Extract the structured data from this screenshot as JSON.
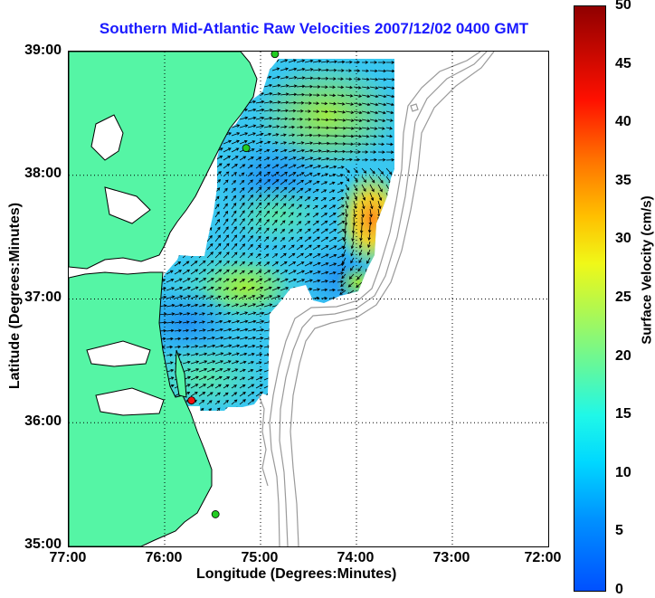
{
  "title": "Southern Mid-Atlantic Raw Velocities 2007/12/02 0400 GMT",
  "xlabel": "Longitude (Degrees:Minutes)",
  "ylabel": "Latitude (Degrees:Minutes)",
  "x_ticks": [
    "77:00",
    "76:00",
    "75:00",
    "74:00",
    "73:00",
    "72:00"
  ],
  "y_ticks": [
    "39:00",
    "38:00",
    "37:00",
    "36:00",
    "35:00"
  ],
  "colorbar": {
    "label": "Surface Velocity (cm/s)",
    "ticks": [
      "50",
      "45",
      "40",
      "35",
      "30",
      "25",
      "20",
      "15",
      "10",
      "5",
      "0"
    ],
    "min": 0,
    "max": 50
  },
  "colors": {
    "land": "#55f5a5",
    "coastline": "#000000",
    "bathymetry": "#9a9a9a",
    "title": "#1a1aff",
    "station_active": "#22cc22",
    "station_alert": "#ee1111"
  },
  "legend_stations": [
    {
      "name": "station",
      "status": "active"
    },
    {
      "name": "station",
      "status": "active"
    },
    {
      "name": "station",
      "status": "alert"
    },
    {
      "name": "station",
      "status": "active"
    }
  ],
  "chart_data": {
    "type": "heatmap",
    "title": "Southern Mid-Atlantic Raw Velocities 2007/12/02 0400 GMT",
    "xlabel": "Longitude (Degrees:Minutes)",
    "ylabel": "Latitude (Degrees:Minutes)",
    "xlim": [
      -77,
      -72
    ],
    "ylim": [
      35,
      39
    ],
    "grid": true,
    "colorbar_range": [
      0,
      50
    ],
    "stations": [
      {
        "lon": -74.85,
        "lat": 38.98,
        "status": "active"
      },
      {
        "lon": -75.15,
        "lat": 38.22,
        "status": "active"
      },
      {
        "lon": -75.72,
        "lat": 36.18,
        "status": "alert"
      },
      {
        "lon": -75.47,
        "lat": 35.26,
        "status": "active"
      }
    ]
  }
}
